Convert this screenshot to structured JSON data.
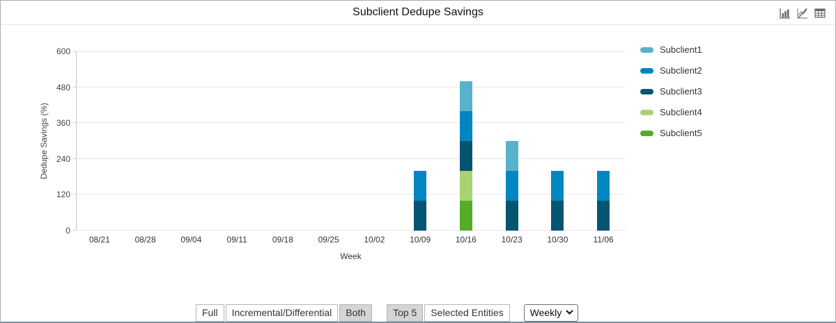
{
  "header": {
    "title": "Subclient Dedupe Savings",
    "icons": [
      {
        "name": "bar-chart-view-icon"
      },
      {
        "name": "line-chart-disabled-icon"
      },
      {
        "name": "table-view-icon"
      }
    ]
  },
  "chart_data": {
    "type": "bar",
    "stacked": true,
    "title": "Subclient Dedupe Savings",
    "xlabel": "Week",
    "ylabel": "Dedupe Savings (%)",
    "ylim": [
      0,
      600
    ],
    "yticks": [
      0,
      120,
      240,
      360,
      480,
      600
    ],
    "grid": true,
    "legend_position": "right",
    "categories": [
      "08/21",
      "08/28",
      "09/04",
      "09/11",
      "09/18",
      "09/25",
      "10/02",
      "10/09",
      "10/16",
      "10/23",
      "10/30",
      "11/06"
    ],
    "series": [
      {
        "name": "Subclient1",
        "color": "#57b2cb",
        "values": [
          0,
          0,
          0,
          0,
          0,
          0,
          0,
          0,
          100,
          100,
          0,
          0
        ]
      },
      {
        "name": "Subclient2",
        "color": "#0087c1",
        "values": [
          0,
          0,
          0,
          0,
          0,
          0,
          0,
          100,
          100,
          100,
          100,
          100
        ]
      },
      {
        "name": "Subclient3",
        "color": "#055572",
        "values": [
          0,
          0,
          0,
          0,
          0,
          0,
          0,
          100,
          100,
          100,
          100,
          100
        ]
      },
      {
        "name": "Subclient4",
        "color": "#a9d273",
        "values": [
          0,
          0,
          0,
          0,
          0,
          0,
          0,
          0,
          100,
          0,
          0,
          0
        ]
      },
      {
        "name": "Subclient5",
        "color": "#54ac29",
        "values": [
          0,
          0,
          0,
          0,
          0,
          0,
          0,
          0,
          100,
          0,
          0,
          0
        ]
      }
    ]
  },
  "controls": {
    "backup_type": {
      "options": [
        "Full",
        "Incremental/Differential",
        "Both"
      ],
      "selected": "Both"
    },
    "entity_filter": {
      "options": [
        "Top 5",
        "Selected Entities"
      ],
      "selected": "Top 5"
    },
    "frequency": {
      "value": "Weekly"
    }
  }
}
